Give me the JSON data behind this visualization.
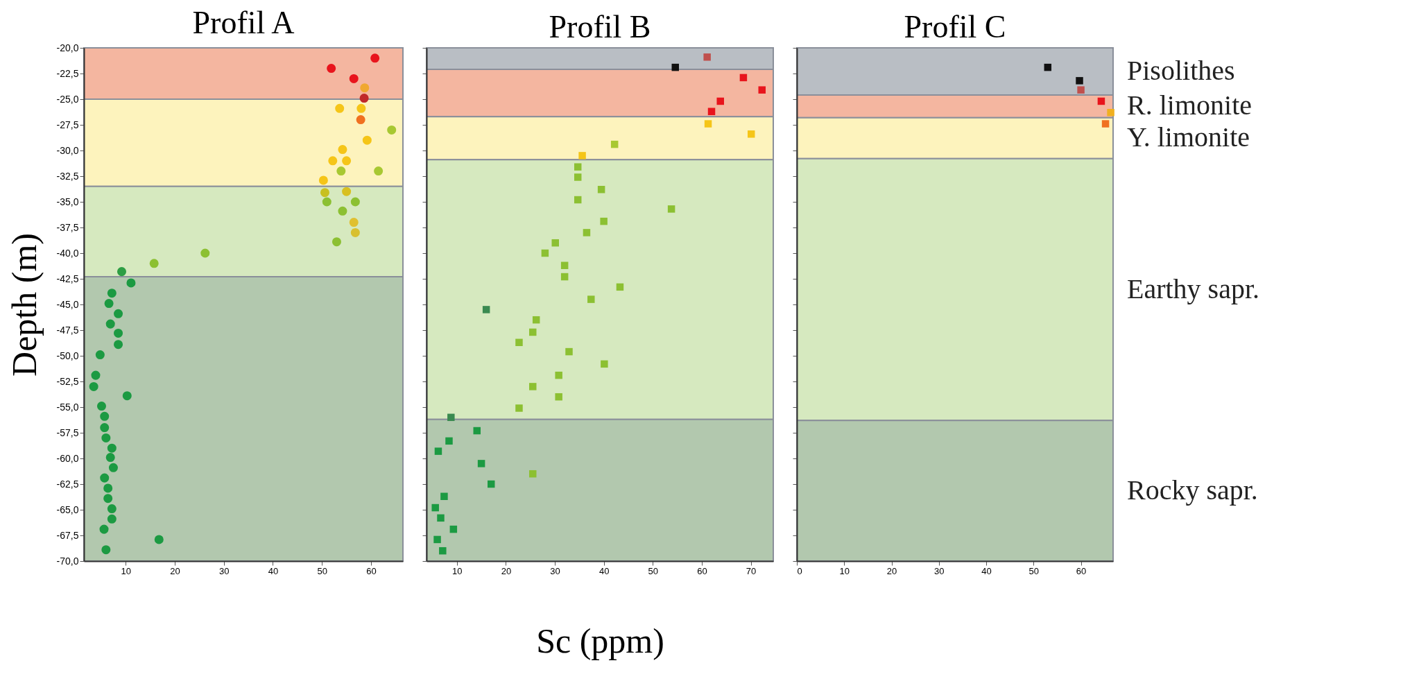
{
  "chart_data": [
    {
      "type": "scatter",
      "title": "Profil A",
      "ylabel": "Depth (m)",
      "marker": "circle",
      "grid": false,
      "x": [
        60.8,
        51.9,
        56.5,
        58.7,
        58.6,
        53.6,
        58.0,
        57.9,
        64.2,
        59.2,
        54.2,
        52.2,
        55.0,
        53.9,
        61.5,
        50.3,
        50.6,
        55.0,
        51.0,
        56.8,
        54.2,
        56.5,
        56.8,
        53.0,
        26.2,
        15.8,
        9.2,
        11.1,
        7.2,
        6.6,
        8.5,
        6.9,
        8.5,
        8.5,
        4.8,
        3.9,
        3.5,
        10.3,
        5.1,
        5.7,
        5.7,
        6.0,
        7.2,
        6.9,
        7.5,
        5.7,
        6.4,
        6.4,
        7.2,
        7.2,
        5.6,
        16.8,
        6.0
      ],
      "values": [
        -21.0,
        -22.0,
        -23.0,
        -23.9,
        -24.9,
        -25.9,
        -25.9,
        -27.0,
        -28.0,
        -29.0,
        -29.9,
        -31.0,
        -31.0,
        -32.0,
        -32.0,
        -32.9,
        -34.1,
        -34.0,
        -35.0,
        -35.0,
        -35.9,
        -37.0,
        -38.0,
        -38.9,
        -40.0,
        -41.0,
        -41.8,
        -42.9,
        -43.9,
        -44.9,
        -45.9,
        -46.9,
        -47.8,
        -48.9,
        -49.9,
        -51.9,
        -53.0,
        -53.9,
        -54.9,
        -55.9,
        -57.0,
        -58.0,
        -59.0,
        -59.9,
        -60.9,
        -61.9,
        -62.9,
        -63.9,
        -64.9,
        -65.9,
        -66.9,
        -67.9,
        -68.9
      ],
      "colors": [
        "#e8141c",
        "#e8141c",
        "#e8141c",
        "#f0a830",
        "#c0282a",
        "#f5c518",
        "#f5c518",
        "#f07020",
        "#a8c832",
        "#f5c518",
        "#f5c518",
        "#f5c518",
        "#f5c518",
        "#a8c832",
        "#a8c832",
        "#f5c518",
        "#c8c020",
        "#d8c020",
        "#8cc032",
        "#8cc032",
        "#8cc032",
        "#e0c030",
        "#d8c030",
        "#8cc032",
        "#8cc032",
        "#8cc032",
        "#2e9e44",
        "#1c9a42",
        "#1c9a42",
        "#1c9a42",
        "#1c9a42",
        "#1c9a42",
        "#1c9a42",
        "#1c9a42",
        "#1c9a42",
        "#1c9a42",
        "#1c9a42",
        "#1c9a42",
        "#1c9a42",
        "#1c9a42",
        "#1c9a42",
        "#1c9a42",
        "#1c9a42",
        "#1c9a42",
        "#1c9a42",
        "#1c9a42",
        "#1c9a42",
        "#1c9a42",
        "#1c9a42",
        "#1c9a42",
        "#1c9a42",
        "#1c9a42",
        "#1c9a42"
      ],
      "xlim": [
        1.5,
        66.5
      ],
      "xticks": [
        10,
        20,
        30,
        40,
        50,
        60
      ],
      "ylim": [
        -70,
        -20
      ],
      "yticks": [
        {
          "value": -20,
          "label": "-20,0"
        },
        {
          "value": -22.5,
          "label": "-22,5"
        },
        {
          "value": -25,
          "label": "-25,0"
        },
        {
          "value": -27.5,
          "label": "-27,5"
        },
        {
          "value": -30,
          "label": "-30,0"
        },
        {
          "value": -32.5,
          "label": "-32,5"
        },
        {
          "value": -35,
          "label": "-35,0"
        },
        {
          "value": -37.5,
          "label": "-37,5"
        },
        {
          "value": -40,
          "label": "-40,0"
        },
        {
          "value": -42.5,
          "label": "-42,5"
        },
        {
          "value": -45,
          "label": "-45,0"
        },
        {
          "value": -47.5,
          "label": "-47,5"
        },
        {
          "value": -50,
          "label": "-50,0"
        },
        {
          "value": -52.5,
          "label": "-52,5"
        },
        {
          "value": -55,
          "label": "-55,0"
        },
        {
          "value": -57.5,
          "label": "-57,5"
        },
        {
          "value": -60,
          "label": "-60,0"
        },
        {
          "value": -62.5,
          "label": "-62,5"
        },
        {
          "value": -65,
          "label": "-65,0"
        },
        {
          "value": -67.5,
          "label": "-67,5"
        },
        {
          "value": -70,
          "label": "-70,0"
        }
      ],
      "bands": [
        {
          "axis": "y",
          "from": -25.0,
          "to": -20,
          "color": "#f4b6a0"
        },
        {
          "axis": "y",
          "from": -33.5,
          "to": -25.0,
          "color": "#fdf3bd"
        },
        {
          "axis": "y",
          "from": -42.3,
          "to": -33.5,
          "color": "#d6e9bf"
        },
        {
          "axis": "y",
          "from": -70,
          "to": -42.3,
          "color": "#b2c8ae"
        }
      ]
    },
    {
      "type": "scatter",
      "title": "Profil B",
      "xlabel": "Sc (ppm)",
      "marker": "square",
      "grid": false,
      "tick_labels": "x",
      "x": [
        61.1,
        54.6,
        68.5,
        72.3,
        63.8,
        62.0,
        61.3,
        70.1,
        42.2,
        35.6,
        34.7,
        34.7,
        39.5,
        34.7,
        53.8,
        40.0,
        36.5,
        30.1,
        28.0,
        32.0,
        32.0,
        43.3,
        37.4,
        16.0,
        26.2,
        25.5,
        22.7,
        32.9,
        40.1,
        30.8,
        25.5,
        30.8,
        22.7,
        8.8,
        14.1,
        8.4,
        6.2,
        15.0,
        25.5,
        17.0,
        7.4,
        5.6,
        6.7,
        9.3,
        6.0,
        7.1
      ],
      "values": [
        -20.9,
        -21.9,
        -22.9,
        -24.1,
        -25.2,
        -26.2,
        -27.4,
        -28.4,
        -29.4,
        -30.5,
        -31.6,
        -32.6,
        -33.8,
        -34.8,
        -35.7,
        -36.9,
        -38.0,
        -39.0,
        -40.0,
        -41.2,
        -42.3,
        -43.3,
        -44.5,
        -45.5,
        -46.5,
        -47.7,
        -48.7,
        -49.6,
        -50.8,
        -51.9,
        -53.0,
        -54.0,
        -55.1,
        -56.0,
        -57.3,
        -58.3,
        -59.3,
        -60.5,
        -61.5,
        -62.5,
        -63.7,
        -64.8,
        -65.8,
        -66.9,
        -67.9,
        -69.0
      ],
      "colors": [
        "#c0504d",
        "#111111",
        "#e8141c",
        "#e8141c",
        "#e8141c",
        "#e8141c",
        "#f5c518",
        "#f5c518",
        "#a8c832",
        "#f5c518",
        "#8cc032",
        "#8cc032",
        "#8cc032",
        "#8cc032",
        "#8cc032",
        "#8cc032",
        "#8cc032",
        "#8cc032",
        "#8cc032",
        "#8cc032",
        "#8cc032",
        "#8cc032",
        "#8cc032",
        "#3a8a50",
        "#8cc032",
        "#8cc032",
        "#8cc032",
        "#8cc032",
        "#8cc032",
        "#8cc032",
        "#8cc032",
        "#8cc032",
        "#8cc032",
        "#3a8a50",
        "#1c9a42",
        "#1c9a42",
        "#1c9a42",
        "#1c9a42",
        "#8cc032",
        "#1c9a42",
        "#1c9a42",
        "#1c9a42",
        "#1c9a42",
        "#1c9a42",
        "#1c9a42",
        "#1c9a42"
      ],
      "xlim": [
        3.8,
        74.6
      ],
      "xticks": [
        10,
        20,
        30,
        40,
        50,
        60,
        70
      ],
      "ylim": [
        -70,
        -20
      ],
      "yticks": [
        -20,
        -22.5,
        -25,
        -27.5,
        -30,
        -32.5,
        -35,
        -37.5,
        -40,
        -42.5,
        -45,
        -47.5,
        -50,
        -52.5,
        -55,
        -57.5,
        -60,
        -62.5,
        -65,
        -67.5,
        -70
      ],
      "bands": [
        {
          "axis": "y",
          "from": -22.1,
          "to": -20,
          "color": "#b9bec4"
        },
        {
          "axis": "y",
          "from": -26.7,
          "to": -22.1,
          "color": "#f4b6a0"
        },
        {
          "axis": "y",
          "from": -30.9,
          "to": -26.7,
          "color": "#fdf3bd"
        },
        {
          "axis": "y",
          "from": -56.2,
          "to": -30.9,
          "color": "#d6e9bf"
        },
        {
          "axis": "y",
          "from": -70,
          "to": -56.2,
          "color": "#b2c8ae"
        }
      ]
    },
    {
      "type": "scatter",
      "title": "Profil C",
      "marker": "square",
      "grid": false,
      "tick_labels": "x",
      "x": [
        53.0,
        59.7,
        60.0,
        64.3,
        66.3,
        65.2
      ],
      "values": [
        -21.9,
        -23.2,
        -24.1,
        -25.2,
        -26.3,
        -27.4
      ],
      "colors": [
        "#111111",
        "#111111",
        "#c0504d",
        "#e8141c",
        "#f0b020",
        "#f07020"
      ],
      "xlim": [
        0,
        66.8
      ],
      "xticks": [
        0,
        10,
        20,
        30,
        40,
        50,
        60
      ],
      "ylim": [
        -70,
        -20
      ],
      "yticks": [
        -20,
        -22.5,
        -25,
        -27.5,
        -30,
        -32.5,
        -35,
        -37.5,
        -40,
        -42.5,
        -45,
        -47.5,
        -50,
        -52.5,
        -55,
        -57.5,
        -60,
        -62.5,
        -65,
        -67.5,
        -70
      ],
      "bands": [
        {
          "axis": "y",
          "from": -24.6,
          "to": -20,
          "color": "#b9bec4",
          "label": "Pisolithes"
        },
        {
          "axis": "y",
          "from": -26.8,
          "to": -24.6,
          "color": "#f4b6a0",
          "label": "R. limonite"
        },
        {
          "axis": "y",
          "from": -30.8,
          "to": -26.8,
          "color": "#fdf3bd",
          "label": "Y. limonite"
        },
        {
          "axis": "y",
          "from": -56.3,
          "to": -30.8,
          "color": "#d6e9bf",
          "label": "Earthy sapr."
        },
        {
          "axis": "y",
          "from": -70,
          "to": -56.3,
          "color": "#b2c8ae",
          "label": "Rocky sapr."
        }
      ]
    }
  ]
}
